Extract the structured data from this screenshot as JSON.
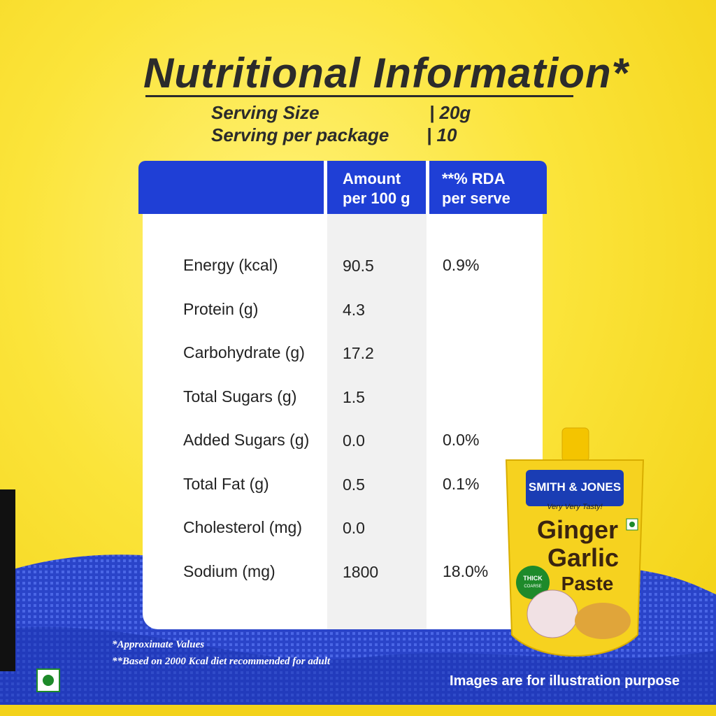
{
  "header": {
    "title": "Nutritional Information*"
  },
  "serving": {
    "size_label": "Serving Size",
    "size_value": "| 20g",
    "per_package_label": "Serving per package",
    "per_package_value": "| 10"
  },
  "table": {
    "columns": [
      "Amount per 100 g",
      "**% RDA per serve"
    ],
    "rows": [
      [
        "Energy (kcal)",
        "90.5",
        "0.9%"
      ],
      [
        "Protein (g)",
        "4.3",
        null
      ],
      [
        "Carbohydrate (g)",
        "17.2",
        null
      ],
      [
        "Total Sugars (g)",
        "1.5",
        null
      ],
      [
        "Added Sugars (g)",
        "0.0",
        "0.0%"
      ],
      [
        "Total Fat (g)",
        "0.5",
        "0.1%"
      ],
      [
        "Cholesterol (mg)",
        "0.0",
        null
      ],
      [
        "Sodium (mg)",
        "1800",
        "18.0%"
      ]
    ]
  },
  "footnotes": [
    "*Approximate Values",
    "**Based on 2000 Kcal diet recommended for adult"
  ],
  "product": {
    "brand": "SMITH & JONES",
    "tagline": "Very Very Tasty!",
    "name_line1": "Ginger",
    "name_line2": "Garlic",
    "name_line3": "Paste",
    "badge_line1": "THICK",
    "badge_line2": "COARSE"
  },
  "disclaimer": "Images are for illustration purpose"
}
